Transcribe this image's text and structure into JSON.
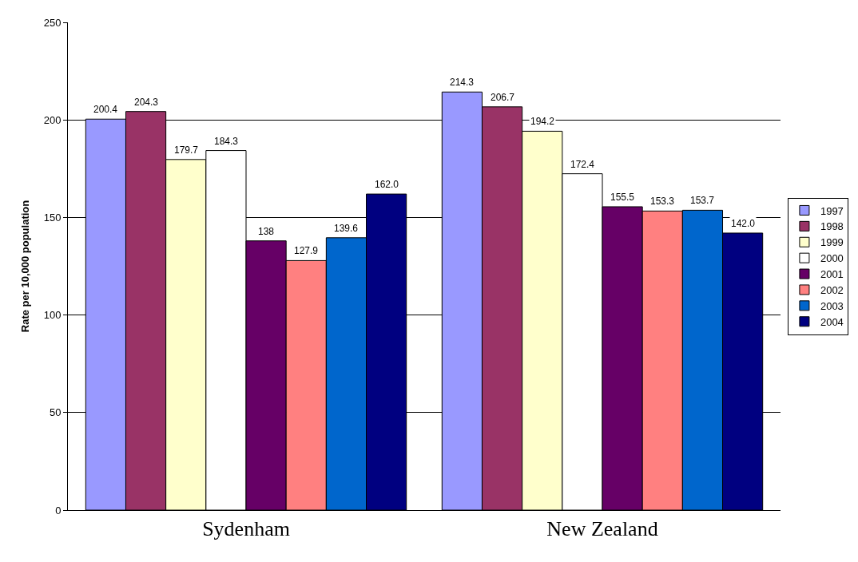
{
  "chart_data": {
    "type": "bar",
    "ylabel": "Rate per 10,000 population",
    "categories": [
      "Sydenham",
      "New Zealand"
    ],
    "series": [
      {
        "name": "1997",
        "color": "#9999ff",
        "values": [
          200.4,
          214.3
        ],
        "value_labels": [
          "200.4",
          "214.3"
        ]
      },
      {
        "name": "1998",
        "color": "#993366",
        "values": [
          204.3,
          206.7
        ],
        "value_labels": [
          "204.3",
          "206.7"
        ]
      },
      {
        "name": "1999",
        "color": "#ffffcc",
        "values": [
          179.7,
          194.2
        ],
        "value_labels": [
          "179.7",
          "194.2"
        ]
      },
      {
        "name": "2000",
        "color": "#ffffff",
        "values": [
          184.3,
          172.4
        ],
        "value_labels": [
          "184.3",
          "172.4"
        ]
      },
      {
        "name": "2001",
        "color": "#660066",
        "values": [
          138,
          155.5
        ],
        "value_labels": [
          "138",
          "155.5"
        ]
      },
      {
        "name": "2002",
        "color": "#ff8080",
        "values": [
          127.9,
          153.3
        ],
        "value_labels": [
          "127.9",
          "153.3"
        ]
      },
      {
        "name": "2003",
        "color": "#0066cc",
        "values": [
          139.6,
          153.7
        ],
        "value_labels": [
          "139.6",
          "153.7"
        ]
      },
      {
        "name": "2004",
        "color": "#000080",
        "values": [
          162.0,
          142.0
        ],
        "value_labels": [
          "162.0",
          "142.0"
        ]
      }
    ],
    "ylim": [
      0,
      250
    ],
    "yticks": [
      0,
      50,
      100,
      150,
      200,
      250
    ],
    "grid": "y",
    "legend": "right"
  }
}
